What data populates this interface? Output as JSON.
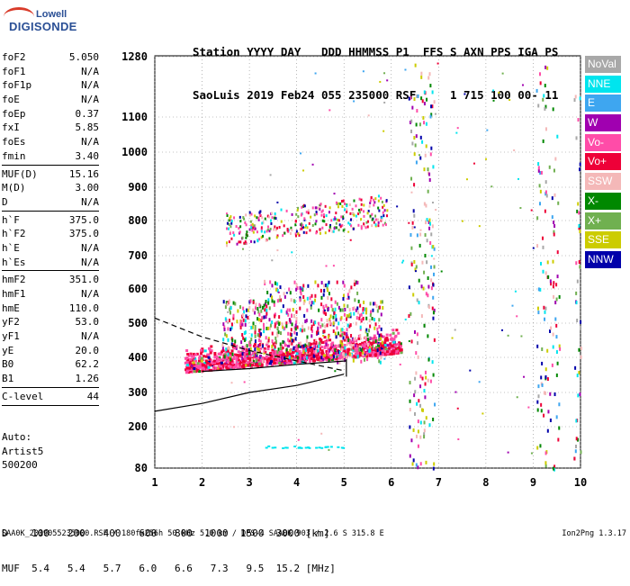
{
  "logo": {
    "top": "Lowell",
    "bottom": "DIGISONDE"
  },
  "header": {
    "line1": "Station YYYY DAY   DDD HHMMSS P1  FFS S AXN PPS IGA PS",
    "line2": "SaoLuis 2019 Feb24 055 235000 RSF     1 715 100 00- 11"
  },
  "params": [
    {
      "name": "foF2",
      "value": "5.050"
    },
    {
      "name": "foF1",
      "value": "N/A"
    },
    {
      "name": "foF1p",
      "value": "N/A"
    },
    {
      "name": "foE",
      "value": "N/A"
    },
    {
      "name": "foEp",
      "value": "0.37"
    },
    {
      "name": "fxI",
      "value": "5.85"
    },
    {
      "name": "foEs",
      "value": "N/A"
    },
    {
      "name": "fmin",
      "value": "3.40"
    },
    {
      "sep": true
    },
    {
      "name": "MUF(D)",
      "value": "15.16"
    },
    {
      "name": "M(D)",
      "value": "3.00"
    },
    {
      "name": "D",
      "value": "N/A"
    },
    {
      "sep": true
    },
    {
      "name": "h`F",
      "value": "375.0"
    },
    {
      "name": "h`F2",
      "value": "375.0"
    },
    {
      "name": "h`E",
      "value": "N/A"
    },
    {
      "name": "h`Es",
      "value": "N/A"
    },
    {
      "sep": true
    },
    {
      "name": "hmF2",
      "value": "351.0"
    },
    {
      "name": "hmF1",
      "value": "N/A"
    },
    {
      "name": "hmE",
      "value": "110.0"
    },
    {
      "name": "yF2",
      "value": "53.0"
    },
    {
      "name": "yF1",
      "value": "N/A"
    },
    {
      "name": "yE",
      "value": "20.0"
    },
    {
      "name": "B0",
      "value": "62.2"
    },
    {
      "name": "B1",
      "value": "1.26"
    },
    {
      "sep": true
    },
    {
      "name": "C-level",
      "value": "44"
    },
    {
      "sep": true
    }
  ],
  "auto": {
    "line1": "Auto:",
    "line2": "Artist5",
    "line3": "500200"
  },
  "legend": [
    {
      "label": "NoVal",
      "color": "#a8a8a8"
    },
    {
      "label": "NNE",
      "color": "#00e5ee"
    },
    {
      "label": "E",
      "color": "#3ea6f0"
    },
    {
      "label": "W",
      "color": "#a000b0"
    },
    {
      "label": "Vo-",
      "color": "#ff4ca8"
    },
    {
      "label": "Vo+",
      "color": "#ee0038"
    },
    {
      "label": "SSW",
      "color": "#f4b8b8"
    },
    {
      "label": "X-",
      "color": "#008800"
    },
    {
      "label": "X+",
      "color": "#70b050"
    },
    {
      "label": "SSE",
      "color": "#cccc00"
    },
    {
      "label": "NNW",
      "color": "#0000aa"
    }
  ],
  "chart_data": {
    "type": "scatter",
    "xlabel": "",
    "ylabel": "",
    "xlim": [
      1,
      10
    ],
    "y_ticks": [
      80,
      200,
      300,
      400,
      500,
      600,
      700,
      800,
      900,
      1000,
      1100,
      1280
    ],
    "x_ticks": [
      1,
      2,
      3,
      4,
      5,
      6,
      7,
      8,
      9,
      10
    ],
    "grid": true,
    "echo_regions": [
      {
        "name": "F2 trace",
        "x": [
          1.6,
          6.3
        ],
        "y": [
          345,
          560
        ],
        "density": "high"
      },
      {
        "name": "2F multi-hop",
        "x": [
          2.5,
          6.0
        ],
        "y": [
          730,
          900
        ],
        "density": "medium"
      },
      {
        "name": "vertical spread 6.5 MHz",
        "x": [
          6.3,
          6.9
        ],
        "y": [
          80,
          1280
        ],
        "density": "low"
      },
      {
        "name": "vertical spread 9.2 MHz",
        "x": [
          9.0,
          9.6
        ],
        "y": [
          80,
          1280
        ],
        "density": "low"
      },
      {
        "name": "vertical spread 10 MHz",
        "x": [
          9.8,
          10.0
        ],
        "y": [
          300,
          1000
        ],
        "density": "low"
      }
    ],
    "profile_solid": {
      "x": [
        1.0,
        2.0,
        3.0,
        4.0,
        5.0
      ],
      "y": [
        245,
        268,
        300,
        320,
        352
      ]
    },
    "profile_dashed": {
      "x": [
        1.0,
        2.0,
        3.0,
        4.0,
        5.0
      ],
      "y": [
        515,
        460,
        420,
        390,
        362
      ]
    },
    "trace_line": {
      "x": [
        2.0,
        3.0,
        4.0,
        5.05
      ],
      "y": [
        360,
        368,
        380,
        390
      ]
    }
  },
  "muf_table": {
    "d_label": "D",
    "d_values": [
      "100",
      "200",
      "400",
      "600",
      "800",
      "1000",
      "1500",
      "3000"
    ],
    "d_unit": "[km]",
    "muf_label": "MUF",
    "muf_values": [
      "5.4",
      "5.4",
      "5.7",
      "6.0",
      "6.6",
      "7.3",
      "9.5",
      "15.2"
    ],
    "muf_unit": "[MHz]"
  },
  "footer": {
    "left": "SAA0K_2019055235000.RSF / 180fx256h 50 kHz 5.0 km / DPS-4 SAA0K 903 / 2.6 S 315.8 E",
    "right": "Ion2Png 1.3.17"
  }
}
